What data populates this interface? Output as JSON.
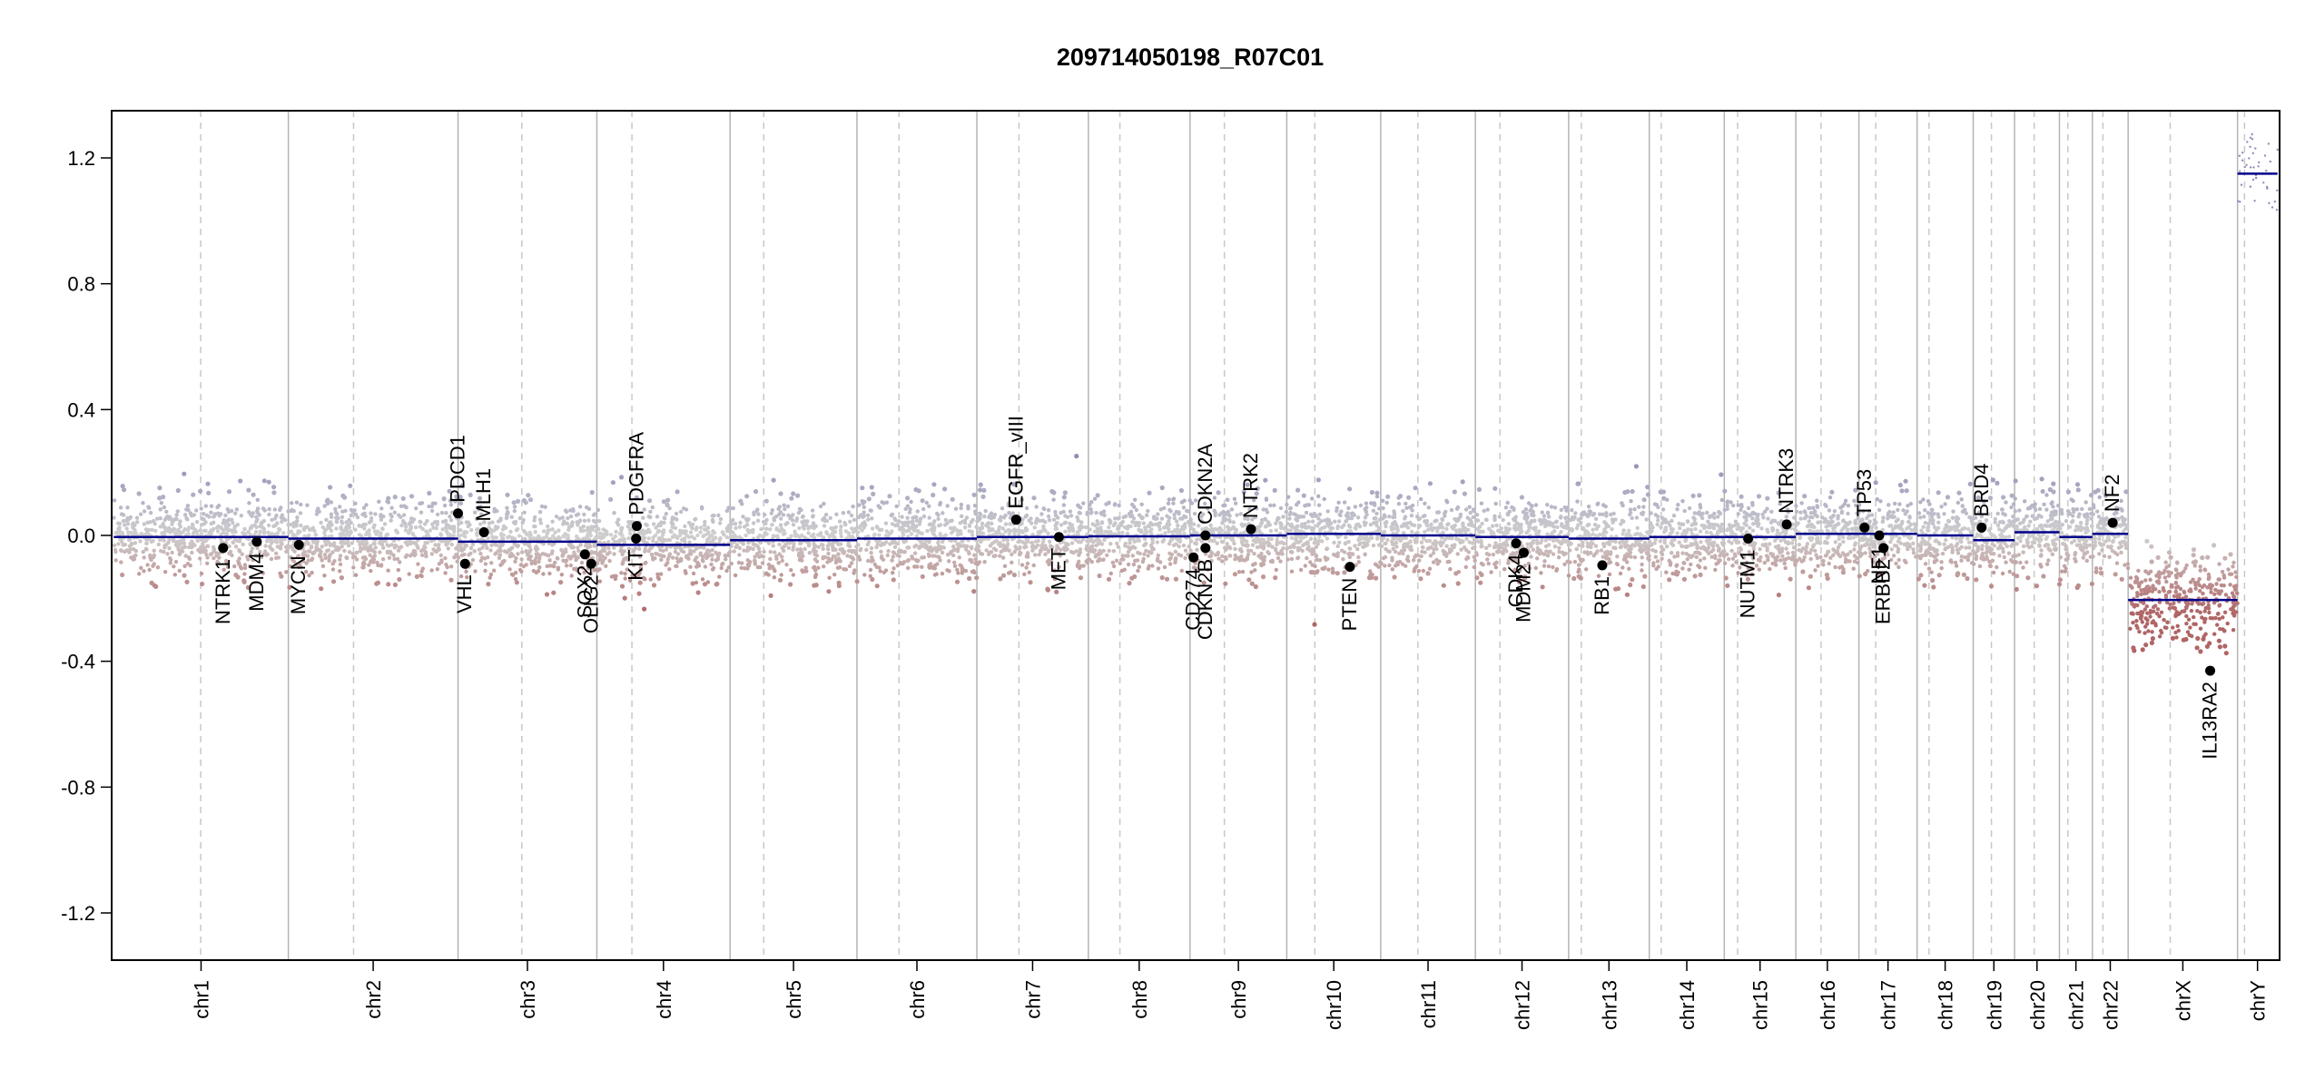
{
  "chart_data": {
    "type": "scatter",
    "title": "209714050198_R07C01",
    "xlabel": "",
    "ylabel": "",
    "ylim": [
      -1.35,
      1.35
    ],
    "yticks": [
      -1.2,
      -0.8,
      -0.4,
      0.0,
      0.4,
      0.8,
      1.2
    ],
    "ytick_labels": [
      "-1.2",
      "-0.8",
      "-0.4",
      "0.0",
      "0.4",
      "0.8",
      "1.2"
    ],
    "grid": false,
    "colors": {
      "gain": "#8e8eb8",
      "neutral": "#cfcfcf",
      "loss": "#b06565",
      "segment": "#00008b",
      "point": "#000000",
      "boundary": "#b4b4b4",
      "centromere": "#c8c8c8"
    },
    "chromosomes": [
      {
        "name": "chr1",
        "start": 0.0,
        "end": 249.0,
        "centromere": 124.0
      },
      {
        "name": "chr2",
        "start": 249.0,
        "end": 491.0,
        "centromere": 93.0
      },
      {
        "name": "chr3",
        "start": 491.0,
        "end": 689.0,
        "centromere": 91.0
      },
      {
        "name": "chr4",
        "start": 689.0,
        "end": 879.0,
        "centromere": 50.0
      },
      {
        "name": "chr5",
        "start": 879.0,
        "end": 1060.0,
        "centromere": 48.0
      },
      {
        "name": "chr6",
        "start": 1060.0,
        "end": 1231.0,
        "centromere": 60.0
      },
      {
        "name": "chr7",
        "start": 1231.0,
        "end": 1390.0,
        "centromere": 60.0
      },
      {
        "name": "chr8",
        "start": 1390.0,
        "end": 1535.0,
        "centromere": 45.0
      },
      {
        "name": "chr9",
        "start": 1535.0,
        "end": 1673.0,
        "centromere": 49.0
      },
      {
        "name": "chr10",
        "start": 1673.0,
        "end": 1807.0,
        "centromere": 40.0
      },
      {
        "name": "chr11",
        "start": 1807.0,
        "end": 1942.0,
        "centromere": 53.0
      },
      {
        "name": "chr12",
        "start": 1942.0,
        "end": 2075.0,
        "centromere": 35.0
      },
      {
        "name": "chr13",
        "start": 2075.0,
        "end": 2190.0,
        "centromere": 18.0
      },
      {
        "name": "chr14",
        "start": 2190.0,
        "end": 2297.0,
        "centromere": 17.0
      },
      {
        "name": "chr15",
        "start": 2297.0,
        "end": 2399.0,
        "centromere": 19.0
      },
      {
        "name": "chr16",
        "start": 2399.0,
        "end": 2489.0,
        "centromere": 36.0
      },
      {
        "name": "chr17",
        "start": 2489.0,
        "end": 2572.0,
        "centromere": 24.0
      },
      {
        "name": "chr18",
        "start": 2572.0,
        "end": 2652.0,
        "centromere": 17.0
      },
      {
        "name": "chr19",
        "start": 2652.0,
        "end": 2711.0,
        "centromere": 26.0
      },
      {
        "name": "chr20",
        "start": 2711.0,
        "end": 2775.0,
        "centromere": 28.0
      },
      {
        "name": "chr21",
        "start": 2775.0,
        "end": 2822.0,
        "centromere": 12.0
      },
      {
        "name": "chr22",
        "start": 2822.0,
        "end": 2873.0,
        "centromere": 15.0
      },
      {
        "name": "chrX",
        "start": 2873.0,
        "end": 3029.0,
        "centromere": 60.0
      },
      {
        "name": "chrY",
        "start": 3029.0,
        "end": 3086.0,
        "centromere": 10.0
      }
    ],
    "segments": [
      {
        "chr": "chr1",
        "x": [
          0,
          249
        ],
        "y": -0.005
      },
      {
        "chr": "chr2",
        "x": [
          249,
          491
        ],
        "y": -0.01
      },
      {
        "chr": "chr3",
        "x": [
          491,
          689
        ],
        "y": -0.02
      },
      {
        "chr": "chr4",
        "x": [
          689,
          879
        ],
        "y": -0.03
      },
      {
        "chr": "chr5",
        "x": [
          879,
          1060
        ],
        "y": -0.015
      },
      {
        "chr": "chr6",
        "x": [
          1060,
          1231
        ],
        "y": -0.01
      },
      {
        "chr": "chr7",
        "x": [
          1231,
          1390
        ],
        "y": -0.005
      },
      {
        "chr": "chr8",
        "x": [
          1390,
          1535
        ],
        "y": -0.003
      },
      {
        "chr": "chr9",
        "x": [
          1535,
          1673
        ],
        "y": 0.0
      },
      {
        "chr": "chr10",
        "x": [
          1673,
          1807
        ],
        "y": 0.005
      },
      {
        "chr": "chr11",
        "x": [
          1807,
          1942
        ],
        "y": 0.0
      },
      {
        "chr": "chr12",
        "x": [
          1942,
          2075
        ],
        "y": -0.005
      },
      {
        "chr": "chr13",
        "x": [
          2075,
          2190
        ],
        "y": -0.01
      },
      {
        "chr": "chr14",
        "x": [
          2190,
          2297
        ],
        "y": -0.005
      },
      {
        "chr": "chr15",
        "x": [
          2297,
          2399
        ],
        "y": -0.005
      },
      {
        "chr": "chr16",
        "x": [
          2399,
          2489
        ],
        "y": 0.005
      },
      {
        "chr": "chr17",
        "x": [
          2489,
          2572
        ],
        "y": 0.005
      },
      {
        "chr": "chr18",
        "x": [
          2572,
          2652
        ],
        "y": 0.0
      },
      {
        "chr": "chr19",
        "x": [
          2652,
          2711
        ],
        "y": -0.015
      },
      {
        "chr": "chr20",
        "x": [
          2711,
          2775
        ],
        "y": 0.01
      },
      {
        "chr": "chr21",
        "x": [
          2775,
          2822
        ],
        "y": -0.005
      },
      {
        "chr": "chr22",
        "x": [
          2822,
          2873
        ],
        "y": 0.005
      },
      {
        "chr": "chrX",
        "x": [
          2873,
          3029
        ],
        "y": -0.205
      },
      {
        "chr": "chrY",
        "x": [
          3029,
          3086
        ],
        "y": 1.15
      }
    ],
    "genes": [
      {
        "name": "NTRK1",
        "x": 156,
        "y": -0.04,
        "side": "below"
      },
      {
        "name": "MDM4",
        "x": 204,
        "y": -0.02,
        "side": "below"
      },
      {
        "name": "MYCN",
        "x": 264,
        "y": -0.03,
        "side": "below"
      },
      {
        "name": "VHL",
        "x": 501,
        "y": -0.09,
        "side": "below"
      },
      {
        "name": "PDCD1",
        "x": 491,
        "y": 0.07,
        "side": "above"
      },
      {
        "name": "MLH1",
        "x": 528,
        "y": 0.01,
        "side": "above"
      },
      {
        "name": "SOX2",
        "x": 672,
        "y": -0.06,
        "side": "below"
      },
      {
        "name": "OLIG2",
        "x": 681,
        "y": -0.09,
        "side": "below"
      },
      {
        "name": "KIT",
        "x": 745,
        "y": -0.01,
        "side": "below"
      },
      {
        "name": "PDGFRA",
        "x": 746,
        "y": 0.03,
        "side": "above"
      },
      {
        "name": "EGFR",
        "x": 1287,
        "y": 0.05,
        "side": "above"
      },
      {
        "name": "EGFR_vIII",
        "x": 1287,
        "y": 0.05,
        "side": "above"
      },
      {
        "name": "MET",
        "x": 1348,
        "y": -0.005,
        "side": "below"
      },
      {
        "name": "CD274",
        "x": 1540,
        "y": -0.07,
        "side": "below"
      },
      {
        "name": "CDKN2B",
        "x": 1557,
        "y": -0.04,
        "side": "below"
      },
      {
        "name": "CDKN2A",
        "x": 1557,
        "y": 0.0,
        "side": "above"
      },
      {
        "name": "NTRK2",
        "x": 1622,
        "y": 0.02,
        "side": "above"
      },
      {
        "name": "PTEN",
        "x": 1763,
        "y": -0.1,
        "side": "below"
      },
      {
        "name": "CDK4",
        "x": 2000,
        "y": -0.025,
        "side": "below"
      },
      {
        "name": "MDM2",
        "x": 2011,
        "y": -0.055,
        "side": "below"
      },
      {
        "name": "RB1",
        "x": 2123,
        "y": -0.095,
        "side": "below"
      },
      {
        "name": "NUTM1",
        "x": 2331,
        "y": -0.01,
        "side": "below"
      },
      {
        "name": "NTRK3",
        "x": 2386,
        "y": 0.035,
        "side": "above"
      },
      {
        "name": "TP53",
        "x": 2497,
        "y": 0.025,
        "side": "above"
      },
      {
        "name": "NF1",
        "x": 2518,
        "y": 0.0,
        "side": "below"
      },
      {
        "name": "ERBB2",
        "x": 2524,
        "y": -0.04,
        "side": "below"
      },
      {
        "name": "BRD4",
        "x": 2664,
        "y": 0.025,
        "side": "above"
      },
      {
        "name": "NF2",
        "x": 2851,
        "y": 0.04,
        "side": "above"
      },
      {
        "name": "IL13RA2",
        "x": 2990,
        "y": -0.43,
        "side": "below"
      }
    ]
  }
}
